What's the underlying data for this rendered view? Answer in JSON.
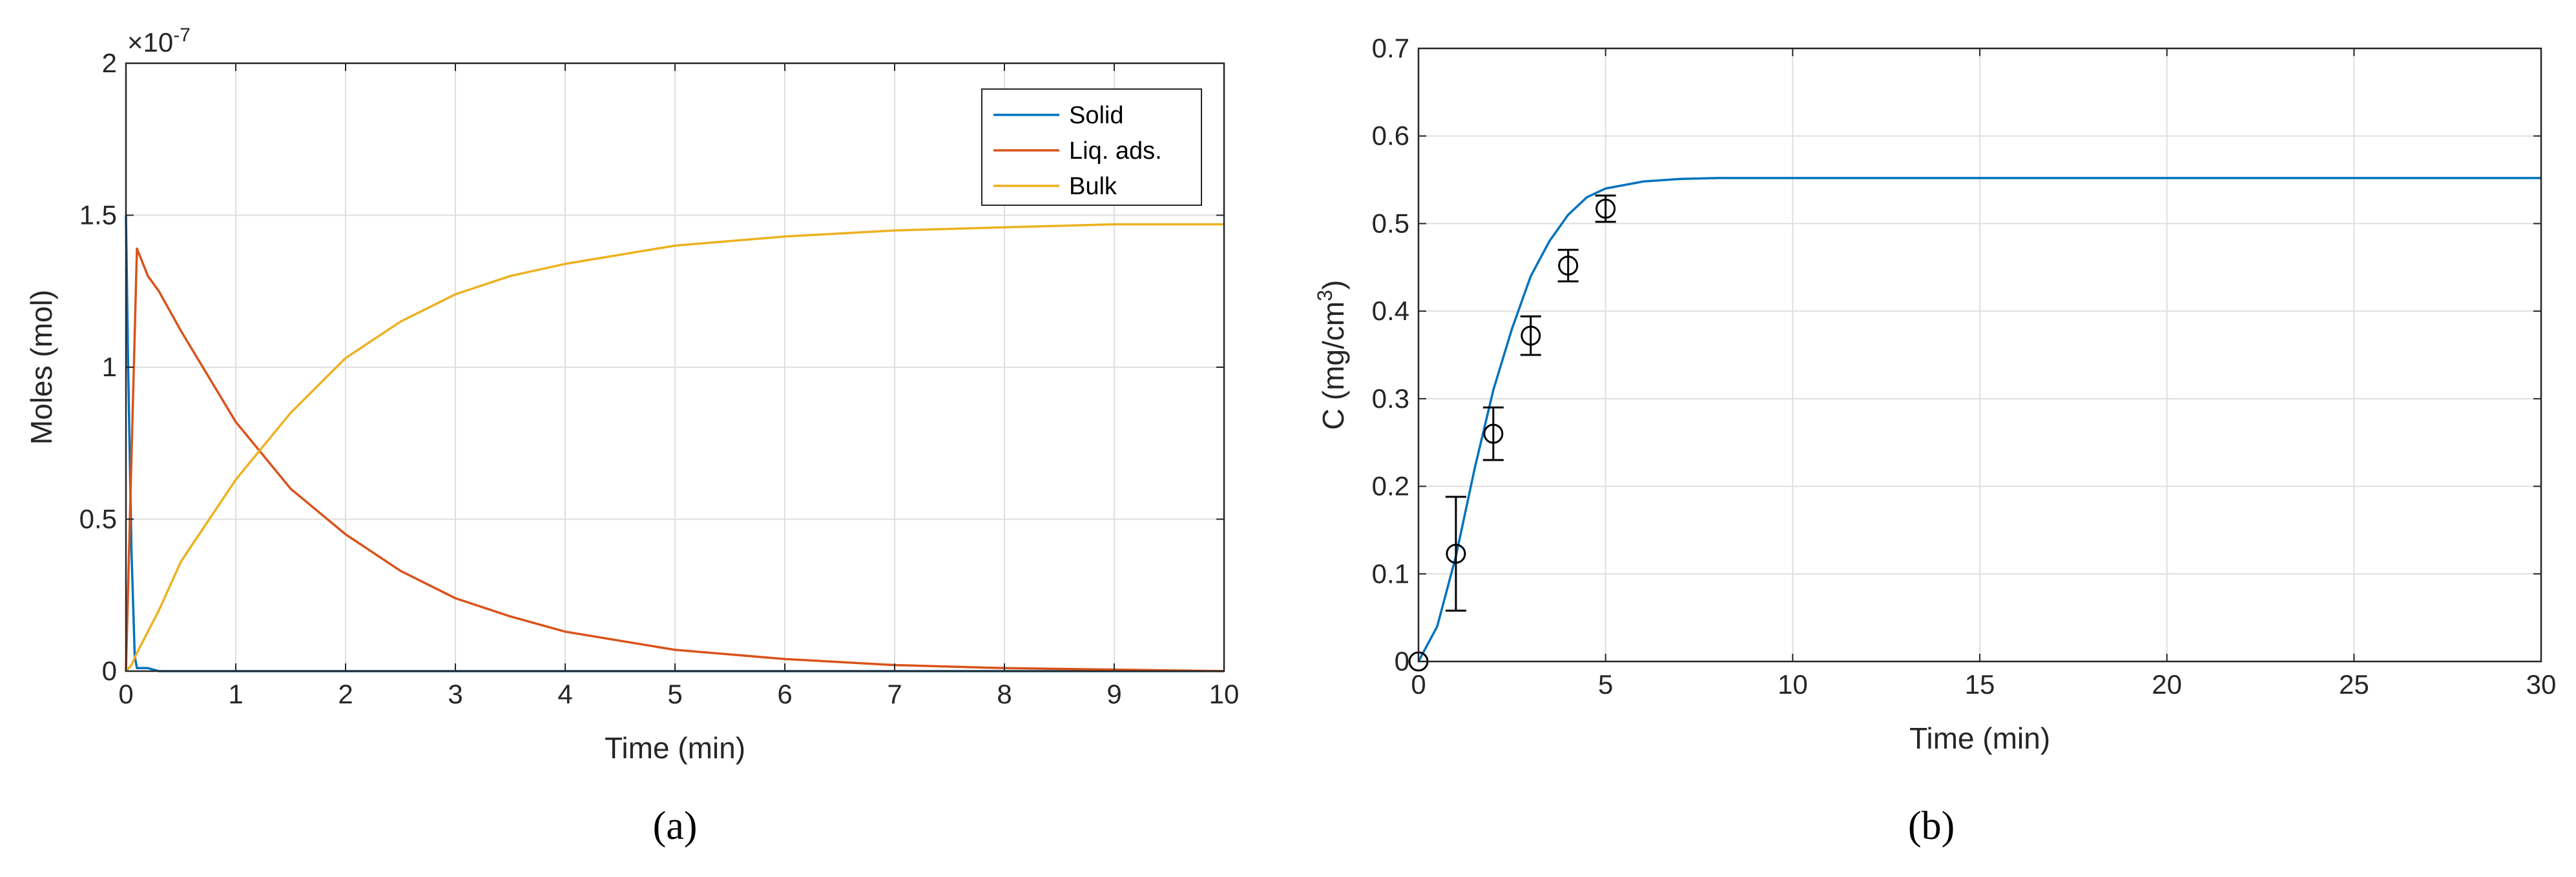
{
  "chart_data": [
    {
      "type": "line",
      "panel_label": "(a)",
      "xlabel": "Time (min)",
      "ylabel": "Moles (mol)",
      "y_exponent": "×10",
      "y_exponent_power": "-7",
      "xlim": [
        0,
        10
      ],
      "ylim": [
        0,
        2
      ],
      "xticks": [
        "0",
        "1",
        "2",
        "3",
        "4",
        "5",
        "6",
        "7",
        "8",
        "9",
        "10"
      ],
      "yticks": [
        "0",
        "0.5",
        "1",
        "1.5",
        "2"
      ],
      "grid": true,
      "legend_position": "top-right",
      "series": [
        {
          "name": "Solid",
          "color": "#0072BD",
          "x": [
            0,
            0.02,
            0.05,
            0.08,
            0.1,
            0.2,
            0.3,
            1,
            2,
            5,
            10
          ],
          "y": [
            1.5,
            1.0,
            0.4,
            0.05,
            0.01,
            0.01,
            0,
            0,
            0,
            0,
            0
          ]
        },
        {
          "name": "Liq. ads.",
          "color": "#D95319",
          "x": [
            0,
            0.05,
            0.1,
            0.2,
            0.3,
            0.5,
            1,
            1.5,
            2,
            2.5,
            3,
            3.5,
            4,
            5,
            6,
            7,
            8,
            9,
            10
          ],
          "y": [
            0,
            0.7,
            1.39,
            1.3,
            1.25,
            1.12,
            0.82,
            0.6,
            0.45,
            0.33,
            0.24,
            0.18,
            0.13,
            0.07,
            0.04,
            0.02,
            0.01,
            0.005,
            0
          ]
        },
        {
          "name": "Bulk",
          "color": "#EDB120",
          "x": [
            0,
            0.05,
            0.1,
            0.3,
            0.5,
            1,
            1.5,
            2,
            2.5,
            3,
            3.5,
            4,
            5,
            6,
            7,
            8,
            9,
            10
          ],
          "y": [
            0,
            0.02,
            0.06,
            0.2,
            0.36,
            0.63,
            0.85,
            1.03,
            1.15,
            1.24,
            1.3,
            1.34,
            1.4,
            1.43,
            1.45,
            1.46,
            1.47,
            1.47
          ]
        }
      ]
    },
    {
      "type": "line",
      "panel_label": "(b)",
      "xlabel": "Time (min)",
      "ylabel": "C (mg/cm",
      "ylabel_sup": "3",
      "ylabel_end": ")",
      "xlim": [
        0,
        30
      ],
      "ylim": [
        0,
        0.7
      ],
      "xticks": [
        "0",
        "5",
        "10",
        "15",
        "20",
        "25",
        "30"
      ],
      "yticks": [
        "0",
        "0.1",
        "0.2",
        "0.3",
        "0.4",
        "0.5",
        "0.6",
        "0.7"
      ],
      "grid": true,
      "series": [
        {
          "type": "line",
          "color": "#0072BD",
          "x": [
            0,
            0.5,
            1,
            1.5,
            2,
            2.5,
            3,
            3.5,
            4,
            4.5,
            5,
            6,
            7,
            8,
            10,
            15,
            20,
            25,
            30
          ],
          "y": [
            0,
            0.04,
            0.12,
            0.22,
            0.31,
            0.38,
            0.44,
            0.48,
            0.51,
            0.53,
            0.54,
            0.548,
            0.551,
            0.552,
            0.552,
            0.552,
            0.552,
            0.552,
            0.552
          ]
        },
        {
          "type": "scatter",
          "marker": "circle",
          "color": "#000000",
          "x": [
            0,
            1,
            2,
            3,
            4,
            5
          ],
          "y": [
            0,
            0.123,
            0.26,
            0.372,
            0.452,
            0.517
          ],
          "err": [
            0,
            0.065,
            0.03,
            0.022,
            0.018,
            0.015
          ]
        }
      ]
    }
  ]
}
